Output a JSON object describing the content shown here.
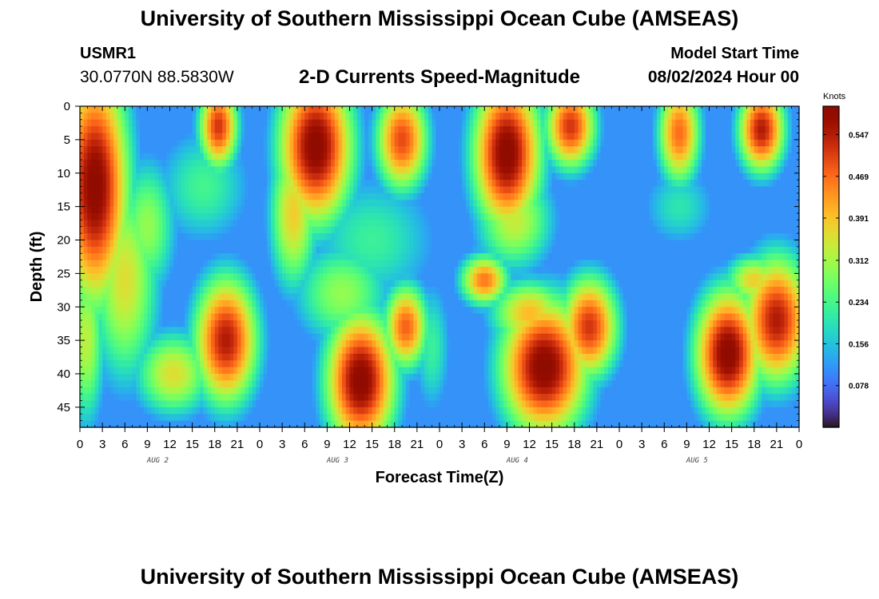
{
  "header": {
    "title": "University of Southern Mississippi Ocean Cube (AMSEAS)",
    "station_id": "USMR1",
    "coords": "30.0770N  88.5830W",
    "subtitle": "2-D Currents Speed-Magnitude",
    "model_label": "Model Start Time",
    "model_time": "08/02/2024 Hour 00"
  },
  "footer": {
    "title": "University of Southern Mississippi Ocean Cube (AMSEAS)"
  },
  "chart_data": {
    "type": "heatmap",
    "title": "2-D Currents Speed-Magnitude",
    "xlabel": "Forecast Time(Z)",
    "ylabel": "Depth (ft)",
    "x_tick_labels": [
      "0",
      "3",
      "6",
      "9",
      "12",
      "15",
      "18",
      "21",
      "0",
      "3",
      "6",
      "9",
      "12",
      "15",
      "18",
      "21",
      "0",
      "3",
      "6",
      "9",
      "12",
      "15",
      "18",
      "21",
      "0",
      "3",
      "6",
      "9",
      "12",
      "15",
      "18",
      "21",
      "0"
    ],
    "day_labels": [
      "AUG 2",
      "AUG 3",
      "AUG 4",
      "AUG 5"
    ],
    "xlim_hours": [
      0,
      96
    ],
    "y_ticks": [
      0,
      5,
      10,
      15,
      20,
      25,
      30,
      35,
      40,
      45
    ],
    "ylim": [
      0,
      48
    ],
    "y_inverted": true,
    "colorbar": {
      "unit": "Knots",
      "tick_labels": [
        "0.547",
        "0.469",
        "0.391",
        "0.312",
        "0.234",
        "0.156",
        "0.078"
      ],
      "ticks": [
        0.547,
        0.469,
        0.391,
        0.312,
        0.234,
        0.156,
        0.078
      ],
      "range": [
        0.0,
        0.6
      ]
    },
    "blobs": [
      {
        "t": 2.0,
        "d": 12.0,
        "st": 3.5,
        "sd": 14.0,
        "v": 0.6
      },
      {
        "t": 0.8,
        "d": 35.0,
        "st": 2.0,
        "sd": 10.0,
        "v": 0.33
      },
      {
        "t": 6.0,
        "d": 26.0,
        "st": 3.5,
        "sd": 12.0,
        "v": 0.36
      },
      {
        "t": 18.5,
        "d": 3.0,
        "st": 2.0,
        "sd": 5.0,
        "v": 0.52
      },
      {
        "t": 16.5,
        "d": 12.0,
        "st": 5.0,
        "sd": 7.0,
        "v": 0.23
      },
      {
        "t": 19.5,
        "d": 35.0,
        "st": 3.3,
        "sd": 7.5,
        "v": 0.55
      },
      {
        "t": 12.5,
        "d": 40.0,
        "st": 4.0,
        "sd": 5.0,
        "v": 0.36
      },
      {
        "t": 31.5,
        "d": 6.0,
        "st": 3.8,
        "sd": 9.0,
        "v": 0.6
      },
      {
        "t": 28.5,
        "d": 16.0,
        "st": 2.5,
        "sd": 9.0,
        "v": 0.38
      },
      {
        "t": 43.0,
        "d": 5.0,
        "st": 2.7,
        "sd": 6.0,
        "v": 0.5
      },
      {
        "t": 39.0,
        "d": 20.0,
        "st": 7.0,
        "sd": 8.0,
        "v": 0.22
      },
      {
        "t": 37.5,
        "d": 41.0,
        "st": 3.6,
        "sd": 8.0,
        "v": 0.6
      },
      {
        "t": 43.5,
        "d": 33.0,
        "st": 2.3,
        "sd": 5.0,
        "v": 0.48
      },
      {
        "t": 35.0,
        "d": 28.0,
        "st": 5.0,
        "sd": 6.0,
        "v": 0.3
      },
      {
        "t": 57.0,
        "d": 7.0,
        "st": 3.5,
        "sd": 9.0,
        "v": 0.6
      },
      {
        "t": 58.0,
        "d": 17.0,
        "st": 4.0,
        "sd": 6.0,
        "v": 0.34
      },
      {
        "t": 65.5,
        "d": 3.0,
        "st": 2.6,
        "sd": 5.0,
        "v": 0.52
      },
      {
        "t": 54.0,
        "d": 26.0,
        "st": 2.5,
        "sd": 3.0,
        "v": 0.46
      },
      {
        "t": 62.0,
        "d": 39.0,
        "st": 4.5,
        "sd": 8.0,
        "v": 0.6
      },
      {
        "t": 68.0,
        "d": 33.0,
        "st": 3.0,
        "sd": 6.0,
        "v": 0.52
      },
      {
        "t": 60.0,
        "d": 31.0,
        "st": 4.0,
        "sd": 4.0,
        "v": 0.4
      },
      {
        "t": 80.0,
        "d": 4.0,
        "st": 2.2,
        "sd": 6.0,
        "v": 0.47
      },
      {
        "t": 91.0,
        "d": 3.5,
        "st": 2.4,
        "sd": 5.0,
        "v": 0.55
      },
      {
        "t": 80.0,
        "d": 15.0,
        "st": 4.0,
        "sd": 5.0,
        "v": 0.2
      },
      {
        "t": 86.5,
        "d": 37.0,
        "st": 3.4,
        "sd": 7.5,
        "v": 0.6
      },
      {
        "t": 93.0,
        "d": 32.0,
        "st": 3.5,
        "sd": 7.5,
        "v": 0.55
      },
      {
        "t": 90.0,
        "d": 26.0,
        "st": 3.0,
        "sd": 3.0,
        "v": 0.38
      },
      {
        "t": 9.0,
        "d": 18.0,
        "st": 3.0,
        "sd": 8.0,
        "v": 0.3
      },
      {
        "t": 47.0,
        "d": 36.0,
        "st": 2.0,
        "sd": 8.0,
        "v": 0.22
      }
    ],
    "baseline": 0.11
  }
}
